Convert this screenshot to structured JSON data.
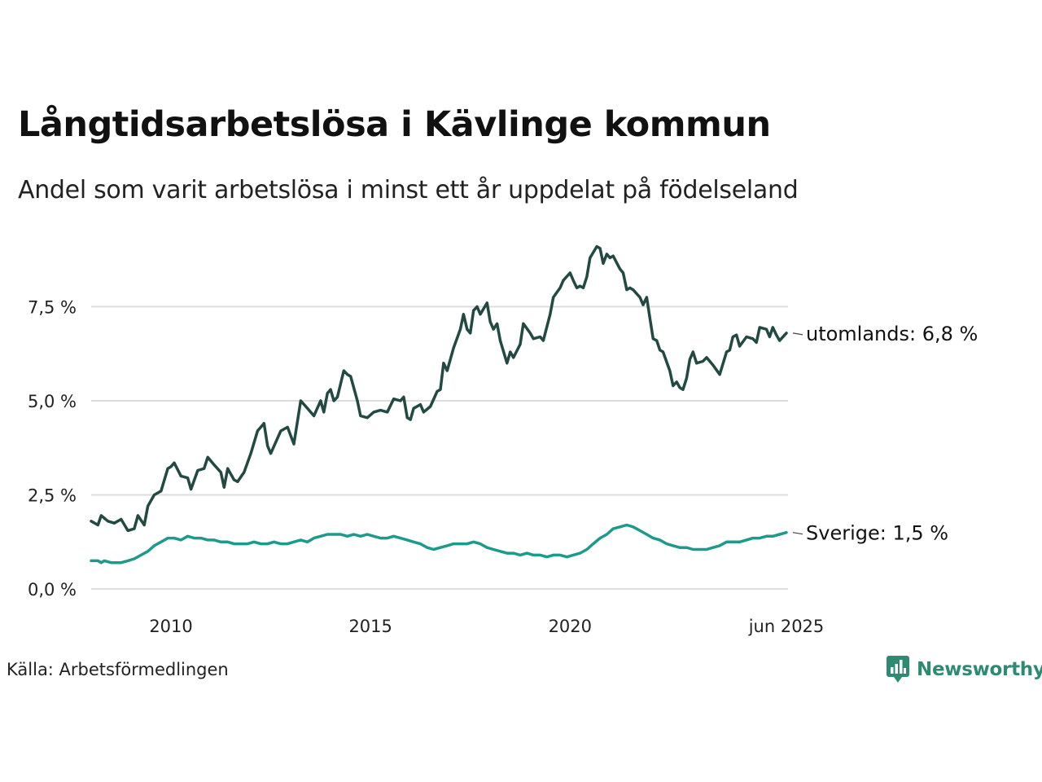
{
  "title": "Långtidsarbetslösa i Kävlinge kommun",
  "subtitle": "Andel som varit arbetslösa i minst ett år uppdelat på födelseland",
  "source": "Källa: Arbetsförmedlingen",
  "brand": {
    "name": "Newsworthy",
    "color": "#2f8a74"
  },
  "chart_data": {
    "type": "line",
    "title": "Långtidsarbetslösa i Kävlinge kommun",
    "subtitle": "Andel som varit arbetslösa i minst ett år uppdelat på födelseland",
    "xlabel": "",
    "ylabel": "",
    "xlim": [
      2008.0,
      2025.42
    ],
    "ylim": [
      0,
      9.2
    ],
    "x_ticks": [
      {
        "value": 2010,
        "label": "2010"
      },
      {
        "value": 2015,
        "label": "2015"
      },
      {
        "value": 2020,
        "label": "2020"
      },
      {
        "value": 2025.42,
        "label": "jun 2025"
      }
    ],
    "y_ticks": [
      {
        "value": 0,
        "label": "0,0 %"
      },
      {
        "value": 2.5,
        "label": "2,5 %"
      },
      {
        "value": 5,
        "label": "5,0 %"
      },
      {
        "value": 7.5,
        "label": "7,5 %"
      }
    ],
    "grid": true,
    "legend": "direct labels at line ends",
    "series": [
      {
        "name": "utomlands",
        "end_label": "utomlands: 6,8 %",
        "color": "#234a42",
        "points": [
          [
            2008.0,
            1.8
          ],
          [
            2008.17,
            1.7
          ],
          [
            2008.25,
            1.95
          ],
          [
            2008.42,
            1.8
          ],
          [
            2008.58,
            1.75
          ],
          [
            2008.75,
            1.85
          ],
          [
            2008.92,
            1.55
          ],
          [
            2009.08,
            1.6
          ],
          [
            2009.17,
            1.95
          ],
          [
            2009.33,
            1.7
          ],
          [
            2009.42,
            2.2
          ],
          [
            2009.58,
            2.5
          ],
          [
            2009.75,
            2.6
          ],
          [
            2009.92,
            3.2
          ],
          [
            2010.0,
            3.25
          ],
          [
            2010.08,
            3.35
          ],
          [
            2010.25,
            3.0
          ],
          [
            2010.42,
            2.95
          ],
          [
            2010.5,
            2.65
          ],
          [
            2010.67,
            3.15
          ],
          [
            2010.83,
            3.2
          ],
          [
            2010.92,
            3.5
          ],
          [
            2011.08,
            3.3
          ],
          [
            2011.25,
            3.1
          ],
          [
            2011.33,
            2.7
          ],
          [
            2011.42,
            3.2
          ],
          [
            2011.58,
            2.9
          ],
          [
            2011.67,
            2.85
          ],
          [
            2011.83,
            3.1
          ],
          [
            2012.0,
            3.6
          ],
          [
            2012.17,
            4.2
          ],
          [
            2012.33,
            4.4
          ],
          [
            2012.42,
            3.8
          ],
          [
            2012.5,
            3.6
          ],
          [
            2012.75,
            4.2
          ],
          [
            2012.92,
            4.3
          ],
          [
            2013.08,
            3.85
          ],
          [
            2013.25,
            5.0
          ],
          [
            2013.42,
            4.8
          ],
          [
            2013.58,
            4.6
          ],
          [
            2013.75,
            5.0
          ],
          [
            2013.83,
            4.7
          ],
          [
            2013.92,
            5.2
          ],
          [
            2014.0,
            5.3
          ],
          [
            2014.08,
            5.0
          ],
          [
            2014.17,
            5.1
          ],
          [
            2014.33,
            5.8
          ],
          [
            2014.42,
            5.7
          ],
          [
            2014.5,
            5.65
          ],
          [
            2014.67,
            5.0
          ],
          [
            2014.75,
            4.6
          ],
          [
            2014.92,
            4.55
          ],
          [
            2015.08,
            4.7
          ],
          [
            2015.25,
            4.75
          ],
          [
            2015.42,
            4.7
          ],
          [
            2015.58,
            5.05
          ],
          [
            2015.75,
            5.0
          ],
          [
            2015.83,
            5.1
          ],
          [
            2015.92,
            4.55
          ],
          [
            2016.0,
            4.5
          ],
          [
            2016.08,
            4.8
          ],
          [
            2016.25,
            4.9
          ],
          [
            2016.33,
            4.7
          ],
          [
            2016.5,
            4.85
          ],
          [
            2016.67,
            5.25
          ],
          [
            2016.75,
            5.3
          ],
          [
            2016.83,
            6.0
          ],
          [
            2016.92,
            5.8
          ],
          [
            2017.08,
            6.4
          ],
          [
            2017.25,
            6.9
          ],
          [
            2017.33,
            7.3
          ],
          [
            2017.42,
            6.9
          ],
          [
            2017.5,
            6.8
          ],
          [
            2017.58,
            7.4
          ],
          [
            2017.67,
            7.5
          ],
          [
            2017.75,
            7.3
          ],
          [
            2017.92,
            7.6
          ],
          [
            2018.0,
            7.1
          ],
          [
            2018.08,
            6.9
          ],
          [
            2018.17,
            7.05
          ],
          [
            2018.25,
            6.6
          ],
          [
            2018.42,
            6.0
          ],
          [
            2018.5,
            6.3
          ],
          [
            2018.58,
            6.15
          ],
          [
            2018.75,
            6.5
          ],
          [
            2018.83,
            7.05
          ],
          [
            2019.0,
            6.8
          ],
          [
            2019.08,
            6.65
          ],
          [
            2019.25,
            6.7
          ],
          [
            2019.33,
            6.6
          ],
          [
            2019.5,
            7.3
          ],
          [
            2019.58,
            7.75
          ],
          [
            2019.75,
            8.0
          ],
          [
            2019.83,
            8.2
          ],
          [
            2020.0,
            8.4
          ],
          [
            2020.08,
            8.2
          ],
          [
            2020.17,
            8.0
          ],
          [
            2020.25,
            8.05
          ],
          [
            2020.33,
            8.0
          ],
          [
            2020.42,
            8.3
          ],
          [
            2020.5,
            8.8
          ],
          [
            2020.67,
            9.1
          ],
          [
            2020.75,
            9.05
          ],
          [
            2020.83,
            8.65
          ],
          [
            2020.92,
            8.9
          ],
          [
            2021.0,
            8.8
          ],
          [
            2021.08,
            8.85
          ],
          [
            2021.25,
            8.5
          ],
          [
            2021.33,
            8.4
          ],
          [
            2021.42,
            7.95
          ],
          [
            2021.5,
            8.0
          ],
          [
            2021.58,
            7.95
          ],
          [
            2021.75,
            7.75
          ],
          [
            2021.83,
            7.55
          ],
          [
            2021.92,
            7.75
          ],
          [
            2022.0,
            7.2
          ],
          [
            2022.08,
            6.65
          ],
          [
            2022.17,
            6.6
          ],
          [
            2022.25,
            6.35
          ],
          [
            2022.33,
            6.3
          ],
          [
            2022.5,
            5.8
          ],
          [
            2022.58,
            5.4
          ],
          [
            2022.67,
            5.5
          ],
          [
            2022.75,
            5.35
          ],
          [
            2022.83,
            5.3
          ],
          [
            2022.92,
            5.6
          ],
          [
            2023.0,
            6.1
          ],
          [
            2023.08,
            6.3
          ],
          [
            2023.17,
            6.0
          ],
          [
            2023.33,
            6.05
          ],
          [
            2023.42,
            6.15
          ],
          [
            2023.58,
            5.95
          ],
          [
            2023.75,
            5.7
          ],
          [
            2023.92,
            6.3
          ],
          [
            2024.0,
            6.35
          ],
          [
            2024.08,
            6.7
          ],
          [
            2024.17,
            6.75
          ],
          [
            2024.25,
            6.45
          ],
          [
            2024.42,
            6.7
          ],
          [
            2024.58,
            6.65
          ],
          [
            2024.67,
            6.55
          ],
          [
            2024.75,
            6.95
          ],
          [
            2024.92,
            6.9
          ],
          [
            2025.0,
            6.7
          ],
          [
            2025.08,
            6.95
          ],
          [
            2025.17,
            6.75
          ],
          [
            2025.25,
            6.6
          ],
          [
            2025.42,
            6.8
          ]
        ]
      },
      {
        "name": "Sverige",
        "end_label": "Sverige: 1,5 %",
        "color": "#1d9a8a",
        "points": [
          [
            2008.0,
            0.75
          ],
          [
            2008.17,
            0.75
          ],
          [
            2008.25,
            0.7
          ],
          [
            2008.33,
            0.75
          ],
          [
            2008.5,
            0.7
          ],
          [
            2008.75,
            0.7
          ],
          [
            2008.92,
            0.75
          ],
          [
            2009.08,
            0.8
          ],
          [
            2009.25,
            0.9
          ],
          [
            2009.42,
            1.0
          ],
          [
            2009.58,
            1.15
          ],
          [
            2009.75,
            1.25
          ],
          [
            2009.92,
            1.35
          ],
          [
            2010.08,
            1.35
          ],
          [
            2010.25,
            1.3
          ],
          [
            2010.42,
            1.4
          ],
          [
            2010.58,
            1.35
          ],
          [
            2010.75,
            1.35
          ],
          [
            2010.92,
            1.3
          ],
          [
            2011.08,
            1.3
          ],
          [
            2011.25,
            1.25
          ],
          [
            2011.42,
            1.25
          ],
          [
            2011.58,
            1.2
          ],
          [
            2011.75,
            1.2
          ],
          [
            2011.92,
            1.2
          ],
          [
            2012.08,
            1.25
          ],
          [
            2012.25,
            1.2
          ],
          [
            2012.42,
            1.2
          ],
          [
            2012.58,
            1.25
          ],
          [
            2012.75,
            1.2
          ],
          [
            2012.92,
            1.2
          ],
          [
            2013.08,
            1.25
          ],
          [
            2013.25,
            1.3
          ],
          [
            2013.42,
            1.25
          ],
          [
            2013.58,
            1.35
          ],
          [
            2013.75,
            1.4
          ],
          [
            2013.92,
            1.45
          ],
          [
            2014.08,
            1.45
          ],
          [
            2014.25,
            1.45
          ],
          [
            2014.42,
            1.4
          ],
          [
            2014.58,
            1.45
          ],
          [
            2014.75,
            1.4
          ],
          [
            2014.92,
            1.45
          ],
          [
            2015.08,
            1.4
          ],
          [
            2015.25,
            1.35
          ],
          [
            2015.42,
            1.35
          ],
          [
            2015.58,
            1.4
          ],
          [
            2015.75,
            1.35
          ],
          [
            2015.92,
            1.3
          ],
          [
            2016.08,
            1.25
          ],
          [
            2016.25,
            1.2
          ],
          [
            2016.42,
            1.1
          ],
          [
            2016.58,
            1.05
          ],
          [
            2016.75,
            1.1
          ],
          [
            2016.92,
            1.15
          ],
          [
            2017.08,
            1.2
          ],
          [
            2017.25,
            1.2
          ],
          [
            2017.42,
            1.2
          ],
          [
            2017.58,
            1.25
          ],
          [
            2017.75,
            1.2
          ],
          [
            2017.92,
            1.1
          ],
          [
            2018.08,
            1.05
          ],
          [
            2018.25,
            1.0
          ],
          [
            2018.42,
            0.95
          ],
          [
            2018.58,
            0.95
          ],
          [
            2018.75,
            0.9
          ],
          [
            2018.92,
            0.95
          ],
          [
            2019.08,
            0.9
          ],
          [
            2019.25,
            0.9
          ],
          [
            2019.42,
            0.85
          ],
          [
            2019.58,
            0.9
          ],
          [
            2019.75,
            0.9
          ],
          [
            2019.92,
            0.85
          ],
          [
            2020.08,
            0.9
          ],
          [
            2020.25,
            0.95
          ],
          [
            2020.42,
            1.05
          ],
          [
            2020.58,
            1.2
          ],
          [
            2020.75,
            1.35
          ],
          [
            2020.92,
            1.45
          ],
          [
            2021.08,
            1.6
          ],
          [
            2021.25,
            1.65
          ],
          [
            2021.42,
            1.7
          ],
          [
            2021.58,
            1.65
          ],
          [
            2021.75,
            1.55
          ],
          [
            2021.92,
            1.45
          ],
          [
            2022.08,
            1.35
          ],
          [
            2022.25,
            1.3
          ],
          [
            2022.42,
            1.2
          ],
          [
            2022.58,
            1.15
          ],
          [
            2022.75,
            1.1
          ],
          [
            2022.92,
            1.1
          ],
          [
            2023.08,
            1.05
          ],
          [
            2023.25,
            1.05
          ],
          [
            2023.42,
            1.05
          ],
          [
            2023.58,
            1.1
          ],
          [
            2023.75,
            1.15
          ],
          [
            2023.92,
            1.25
          ],
          [
            2024.08,
            1.25
          ],
          [
            2024.25,
            1.25
          ],
          [
            2024.42,
            1.3
          ],
          [
            2024.58,
            1.35
          ],
          [
            2024.75,
            1.35
          ],
          [
            2024.92,
            1.4
          ],
          [
            2025.08,
            1.4
          ],
          [
            2025.25,
            1.45
          ],
          [
            2025.42,
            1.5
          ]
        ]
      }
    ]
  }
}
